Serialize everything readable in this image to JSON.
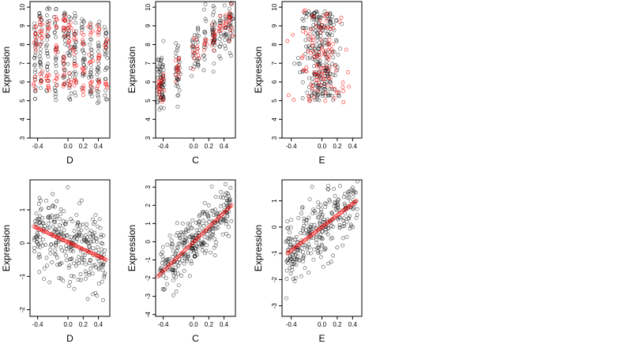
{
  "chart_data": [
    {
      "type": "scatter",
      "xlabel": "D",
      "ylabel": "Expression",
      "xlim": [
        -0.5,
        0.55
      ],
      "ylim": [
        3,
        10.3
      ],
      "xticks": [
        -0.4,
        0.0,
        0.2,
        0.4
      ],
      "yticks": [
        3,
        4,
        5,
        6,
        7,
        8,
        9,
        10
      ],
      "x_columns": [
        -0.43,
        -0.36,
        -0.27,
        -0.16,
        -0.05,
        0.02,
        0.09,
        0.2,
        0.3,
        0.4,
        0.5
      ],
      "black_bands": [
        [
          5.0,
          9.5
        ],
        [
          5.5,
          9.8
        ],
        [
          5.3,
          10.0
        ],
        [
          5.0,
          10.1
        ],
        [
          4.9,
          9.8
        ],
        [
          5.0,
          10.0
        ],
        [
          5.2,
          9.7
        ],
        [
          5.4,
          9.5
        ],
        [
          5.2,
          9.3
        ],
        [
          4.8,
          9.3
        ],
        [
          5.0,
          9.0
        ]
      ],
      "red_levels": [
        [
          6.0,
          8.0,
          8.8
        ],
        [
          6.2,
          8.4,
          9.0
        ],
        [
          5.8,
          6.5,
          8.8
        ],
        [
          6.0,
          8.0,
          9.2
        ],
        [
          6.3,
          7.0,
          8.9,
          9.3
        ],
        [
          5.9,
          8.2,
          9.0
        ],
        [
          6.0,
          7.2,
          8.5
        ],
        [
          5.6,
          6.6,
          8.3
        ],
        [
          5.9,
          7.0,
          8.5
        ],
        [
          5.8,
          7.4,
          8.8
        ],
        [
          6.0,
          8.0
        ]
      ],
      "series": [
        {
          "color": "#000000"
        },
        {
          "color": "#ff0000"
        }
      ]
    },
    {
      "type": "scatter",
      "xlabel": "C",
      "ylabel": "Expression",
      "xlim": [
        -0.5,
        0.55
      ],
      "ylim": [
        3,
        10.3
      ],
      "xticks": [
        -0.4,
        0.0,
        0.2,
        0.4
      ],
      "yticks": [
        3,
        4,
        5,
        6,
        7,
        8,
        9,
        10
      ],
      "x_columns": [
        -0.47,
        -0.44,
        -0.42,
        -0.4,
        -0.22,
        -0.2,
        0.0,
        0.05,
        0.15,
        0.25,
        0.27,
        0.35,
        0.42,
        0.47,
        0.5
      ],
      "trend": {
        "intercept": 7.5,
        "slope": 3.7,
        "noise": 0.9
      },
      "series": [
        {
          "color": "#000000"
        },
        {
          "color": "#ff0000"
        }
      ]
    },
    {
      "type": "scatter",
      "xlabel": "E",
      "ylabel": "Expression",
      "xlim": [
        -0.52,
        0.52
      ],
      "ylim": [
        3,
        10.3
      ],
      "xticks": [
        -0.4,
        0.0,
        0.2,
        0.4
      ],
      "yticks": [
        3,
        4,
        5,
        6,
        7,
        8,
        9,
        10
      ],
      "cluster": {
        "x_center": -0.02,
        "x_spread": 0.2,
        "y_low": 5.0,
        "y_high": 9.8
      },
      "series": [
        {
          "color": "#000000"
        },
        {
          "color": "#ff0000"
        }
      ]
    },
    {
      "type": "scatter",
      "xlabel": "D",
      "ylabel": "Expression",
      "xlim": [
        -0.5,
        0.55
      ],
      "ylim": [
        -2.2,
        1.9
      ],
      "xticks": [
        -0.4,
        0.0,
        0.2,
        0.4
      ],
      "yticks": [
        -2,
        -1,
        0,
        1
      ],
      "fit_line": {
        "from": [
          -0.45,
          0.5
        ],
        "to": [
          0.5,
          -0.5
        ]
      },
      "noise": 0.6,
      "series": [
        {
          "color": "#000000"
        },
        {
          "color": "#ff0000"
        }
      ]
    },
    {
      "type": "scatter",
      "xlabel": "C",
      "ylabel": "Expression",
      "xlim": [
        -0.5,
        0.55
      ],
      "ylim": [
        -4.1,
        3.4
      ],
      "xticks": [
        -0.4,
        0.0,
        0.2,
        0.4
      ],
      "yticks": [
        -4,
        -3,
        -2,
        -1,
        0,
        1,
        2,
        3
      ],
      "fit_line": {
        "from": [
          -0.47,
          -1.9
        ],
        "to": [
          0.5,
          2.0
        ]
      },
      "noise": 0.7,
      "series": [
        {
          "color": "#000000"
        },
        {
          "color": "#ff0000"
        }
      ]
    },
    {
      "type": "scatter",
      "xlabel": "E",
      "ylabel": "Expression",
      "xlim": [
        -0.52,
        0.52
      ],
      "ylim": [
        -3.4,
        1.8
      ],
      "xticks": [
        -0.4,
        0.0,
        0.2,
        0.4
      ],
      "yticks": [
        -3,
        -2,
        -1,
        0,
        1
      ],
      "fit_line": {
        "from": [
          -0.45,
          -1.0
        ],
        "to": [
          0.45,
          1.0
        ]
      },
      "noise": 0.65,
      "series": [
        {
          "color": "#000000"
        },
        {
          "color": "#ff0000"
        }
      ]
    }
  ]
}
